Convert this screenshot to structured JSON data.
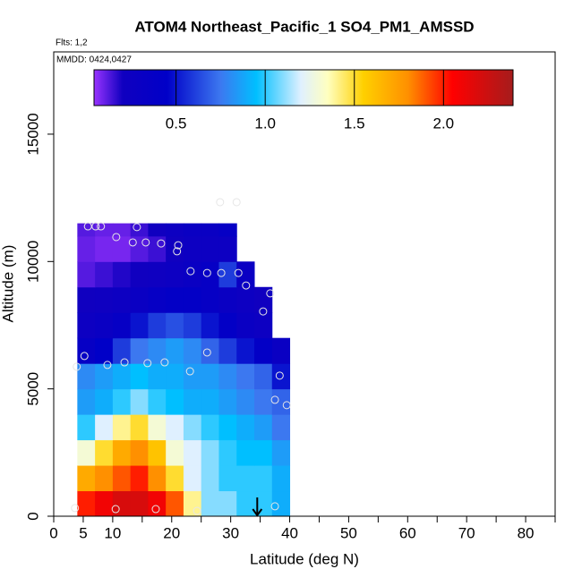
{
  "chart_data": {
    "type": "heatmap",
    "title": "ATOM4 Northeast_Pacific_1 SO4_PM1_AMSSD",
    "flights_label": "Flts: 1,2",
    "dates_label": "MMDD: 0424,0427",
    "x_label": "Latitude (deg N)",
    "y_label": "Altitude (m)",
    "xlim": [
      0,
      85
    ],
    "ylim": [
      0,
      18230
    ],
    "xticks": [
      0,
      5,
      10,
      20,
      30,
      40,
      50,
      60,
      70,
      80
    ],
    "xminor_ticks": [
      15,
      25,
      35,
      45,
      55,
      65,
      75,
      85
    ],
    "yticks": [
      0,
      5000,
      10000,
      15000
    ],
    "lat_edges": [
      4,
      7,
      10,
      13,
      16,
      19,
      22,
      25,
      28,
      31,
      34,
      37,
      40
    ],
    "alt_edges": [
      0,
      1000,
      2000,
      3000,
      4000,
      5000,
      6000,
      7000,
      8000,
      9000,
      10000,
      11000,
      11500
    ],
    "values": [
      [
        2.0,
        2.1,
        2.2,
        2.2,
        2.1,
        1.9,
        1.4,
        1.1,
        1.1,
        1.0,
        1.0,
        0.9
      ],
      [
        1.7,
        1.8,
        1.9,
        2.0,
        1.8,
        1.5,
        1.2,
        1.1,
        1.0,
        1.0,
        1.0,
        0.9
      ],
      [
        1.3,
        1.5,
        1.7,
        1.8,
        1.6,
        1.3,
        1.2,
        1.1,
        1.0,
        0.95,
        0.95,
        0.85
      ],
      [
        1.0,
        1.2,
        1.4,
        1.5,
        1.3,
        1.2,
        1.1,
        1.0,
        0.95,
        0.9,
        0.85,
        0.75
      ],
      [
        0.85,
        0.9,
        1.0,
        1.1,
        1.0,
        0.95,
        0.9,
        0.9,
        0.85,
        0.8,
        0.75,
        0.7
      ],
      [
        0.8,
        0.85,
        0.9,
        0.95,
        0.9,
        0.9,
        0.85,
        0.85,
        0.8,
        0.75,
        0.7,
        0.5
      ],
      [
        0.35,
        0.45,
        0.6,
        0.75,
        0.8,
        0.85,
        0.8,
        0.7,
        0.6,
        0.5,
        0.4,
        0.3
      ],
      [
        0.25,
        0.3,
        0.35,
        0.5,
        0.6,
        0.65,
        0.6,
        0.5,
        0.4,
        0.3,
        0.25,
        null
      ],
      [
        0.2,
        0.22,
        0.25,
        0.3,
        0.35,
        0.4,
        0.4,
        0.35,
        0.3,
        0.25,
        0.2,
        null
      ],
      [
        0.12,
        0.15,
        0.18,
        0.2,
        0.22,
        0.25,
        0.3,
        0.35,
        0.6,
        0.3,
        null,
        null
      ],
      [
        0.1,
        0.08,
        0.08,
        0.12,
        0.15,
        0.2,
        0.25,
        0.25,
        0.25,
        null,
        null,
        null
      ],
      [
        0.12,
        0.1,
        0.1,
        0.15,
        0.2,
        0.25,
        0.3,
        0.3,
        0.35,
        null,
        null,
        null
      ]
    ],
    "colorbar": {
      "lim": [
        0.04,
        2.39
      ],
      "ticks": [
        0.5,
        {
          "value": 1.0,
          "label": "1.0"
        },
        1.5,
        {
          "value": 2.0,
          "label": "2.0"
        }
      ],
      "colormap": [
        [
          0.04,
          "#9933ff"
        ],
        [
          0.2,
          "#1000c0"
        ],
        [
          0.45,
          "#0000c8"
        ],
        [
          0.75,
          "#3c78f0"
        ],
        [
          0.95,
          "#00bfff"
        ],
        [
          1.2,
          "#dff0ff"
        ],
        [
          1.35,
          "#ffffc0"
        ],
        [
          1.55,
          "#ffd000"
        ],
        [
          1.8,
          "#ff9000"
        ],
        [
          2.05,
          "#ff0000"
        ],
        [
          2.39,
          "#a51c1c"
        ]
      ]
    },
    "points": {
      "x": [
        3.6,
        10.5,
        17.3,
        24.3,
        37.5,
        3.9,
        5.2,
        9.1,
        12.0,
        15.9,
        18.8,
        23.1,
        26.0,
        38.3,
        37.5,
        39.5,
        35.5,
        36.7,
        32.6,
        31.3,
        28.4,
        26.0,
        23.2,
        20.9,
        21.1,
        18.2,
        15.6,
        13.4,
        14.1,
        10.6,
        5.8,
        7.1,
        8.0,
        28.2,
        31.0
      ],
      "y": [
        320,
        280,
        280,
        210,
        390,
        5870,
        6290,
        5940,
        6040,
        6010,
        6040,
        5690,
        6430,
        5520,
        4570,
        4360,
        8040,
        8750,
        9060,
        9550,
        9550,
        9550,
        9620,
        10400,
        10640,
        10710,
        10750,
        10750,
        11350,
        10960,
        11380,
        11380,
        11380,
        12330,
        12330
      ]
    },
    "point_color": "#e6e6e6",
    "arrow_x": 34.5
  }
}
